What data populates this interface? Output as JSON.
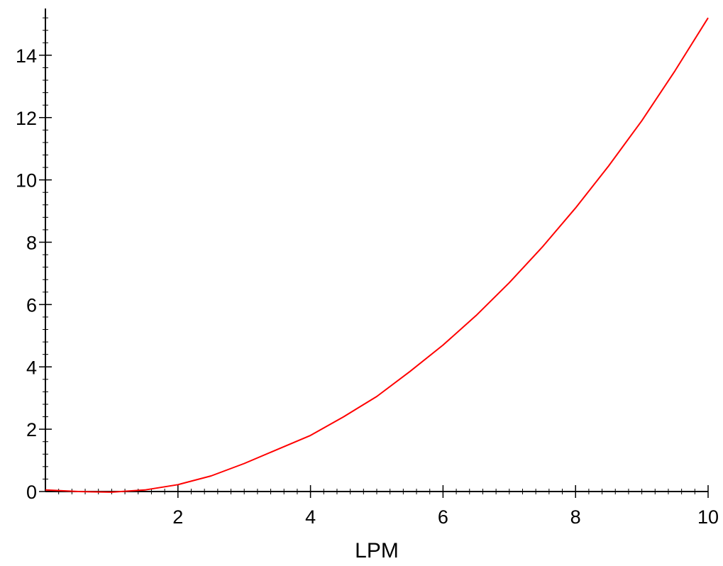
{
  "chart_data": {
    "type": "line",
    "title": "",
    "xlabel": "LPM",
    "ylabel": "",
    "xlim": [
      0,
      10
    ],
    "ylim": [
      0,
      15.5
    ],
    "x_ticks": [
      2,
      4,
      6,
      8,
      10
    ],
    "y_ticks": [
      0,
      2,
      4,
      6,
      8,
      10,
      12,
      14
    ],
    "x_tick_labels": [
      "2",
      "4",
      "6",
      "8",
      "10"
    ],
    "y_tick_labels": [
      "0",
      "2",
      "4",
      "6",
      "8",
      "10",
      "12",
      "14"
    ],
    "x_minor_step": 0.2,
    "y_minor_step": 0.4,
    "grid": false,
    "legend": "none",
    "series": [
      {
        "color": "#ff0000",
        "x": [
          0,
          0.5,
          1.0,
          1.5,
          2.0,
          2.5,
          3.0,
          3.5,
          4.0,
          4.5,
          5.0,
          5.5,
          6.0,
          6.5,
          7.0,
          7.5,
          8.0,
          8.5,
          9.0,
          9.5,
          10.0
        ],
        "y": [
          0.05,
          0.0,
          -0.02,
          0.05,
          0.22,
          0.5,
          0.9,
          1.35,
          1.8,
          2.4,
          3.05,
          3.85,
          4.7,
          5.65,
          6.7,
          7.85,
          9.1,
          10.45,
          11.9,
          13.5,
          15.2
        ]
      }
    ]
  }
}
